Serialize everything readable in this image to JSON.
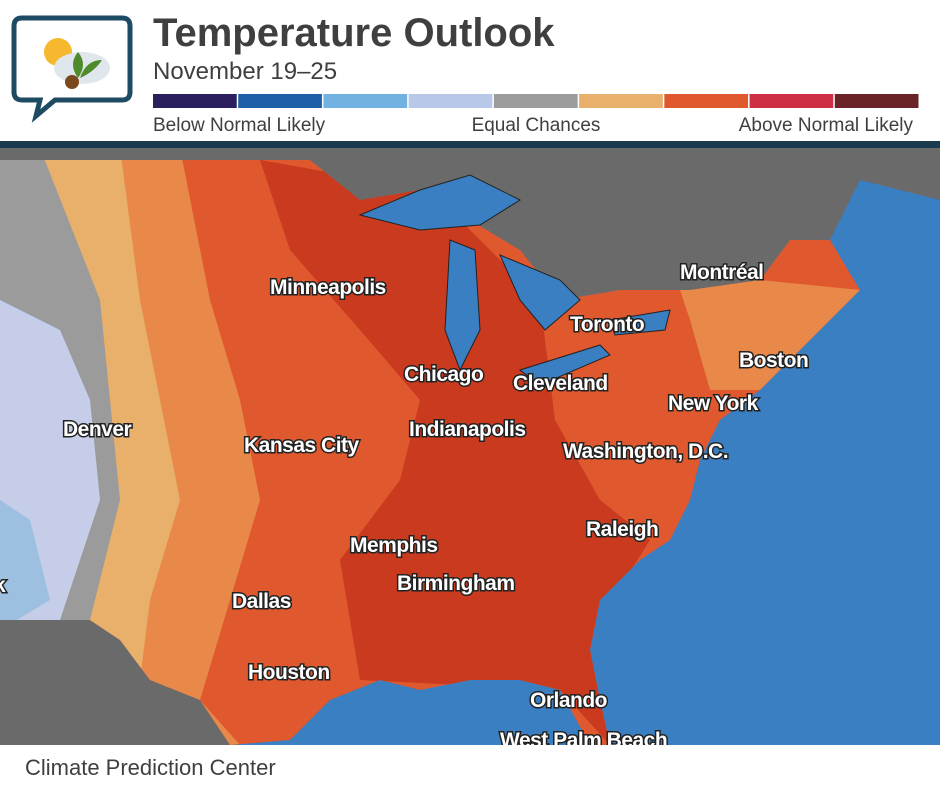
{
  "header": {
    "title": "Temperature Outlook",
    "subtitle": "November 19–25"
  },
  "legend": {
    "colors": [
      "#2b1f5e",
      "#1d5fa8",
      "#72b2e2",
      "#b8c8e8",
      "#9b9b9b",
      "#e8b06b",
      "#df582e",
      "#cf2f45",
      "#6b2329"
    ],
    "labels": [
      "Below Normal Likely",
      "Equal Chances",
      "Above Normal Likely"
    ]
  },
  "map": {
    "cities": [
      "Minneapolis",
      "Toronto",
      "Montréal",
      "Chicago",
      "Cleveland",
      "Boston",
      "Denver",
      "Kansas City",
      "Indianapolis",
      "New York",
      "Washington, D.C.",
      "Memphis",
      "Raleigh",
      "Birmingham",
      "Dallas",
      "Houston",
      "Orlando",
      "West Palm Beach",
      "k"
    ]
  },
  "footer": {
    "source": "Climate Prediction Center"
  }
}
